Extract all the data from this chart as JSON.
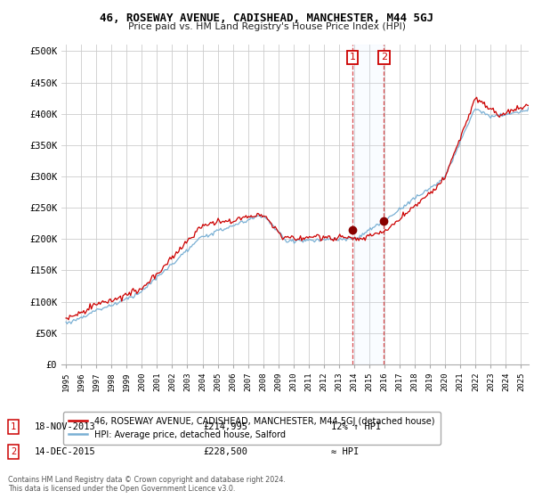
{
  "title": "46, ROSEWAY AVENUE, CADISHEAD, MANCHESTER, M44 5GJ",
  "subtitle": "Price paid vs. HM Land Registry's House Price Index (HPI)",
  "legend_line1": "46, ROSEWAY AVENUE, CADISHEAD, MANCHESTER, M44 5GJ (detached house)",
  "legend_line2": "HPI: Average price, detached house, Salford",
  "annotation1_label": "1",
  "annotation1_date": "18-NOV-2013",
  "annotation1_price": "£214,995",
  "annotation1_hpi": "12% ↑ HPI",
  "annotation2_label": "2",
  "annotation2_date": "14-DEC-2015",
  "annotation2_price": "£228,500",
  "annotation2_hpi": "≈ HPI",
  "footnote": "Contains HM Land Registry data © Crown copyright and database right 2024.\nThis data is licensed under the Open Government Licence v3.0.",
  "ylim": [
    0,
    510000
  ],
  "yticks": [
    0,
    50000,
    100000,
    150000,
    200000,
    250000,
    300000,
    350000,
    400000,
    450000,
    500000
  ],
  "ytick_labels": [
    "£0",
    "£50K",
    "£100K",
    "£150K",
    "£200K",
    "£250K",
    "£300K",
    "£350K",
    "£400K",
    "£450K",
    "£500K"
  ],
  "sale1_year": 2013.88,
  "sale1_price": 214995,
  "sale2_year": 2015.95,
  "sale2_price": 228500,
  "background_color": "#ffffff",
  "grid_color": "#cccccc",
  "red_color": "#cc0000",
  "blue_color": "#7ab0d4",
  "shade_color": "#ddeeff",
  "xlim_left": 1994.7,
  "xlim_right": 2025.5
}
